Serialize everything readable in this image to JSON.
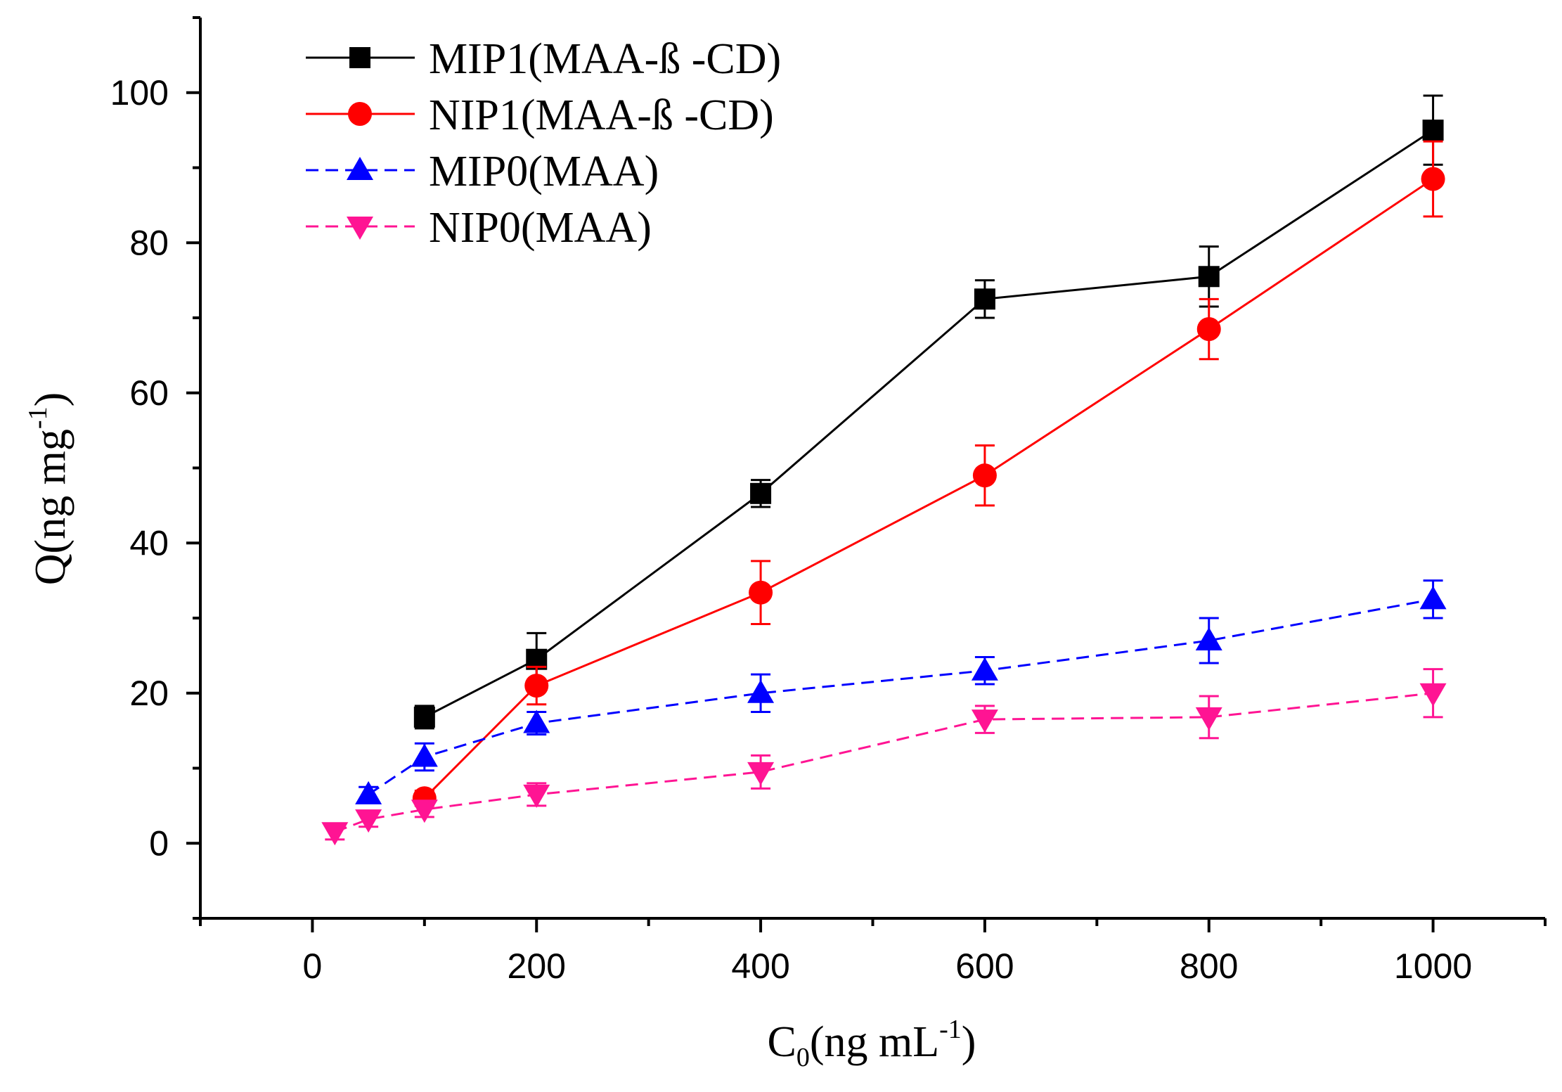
{
  "chart_data": {
    "type": "line",
    "title": "",
    "xlabel": {
      "main": "C",
      "sub": "0",
      "unit": "(ng mL",
      "sup": "-1",
      "close": ")"
    },
    "ylabel": {
      "main": "Q(ng mg",
      "sup": "-1",
      "close": ")"
    },
    "xlim": [
      -100,
      1100
    ],
    "ylim": [
      -10,
      110
    ],
    "x_major_ticks": [
      0,
      200,
      400,
      600,
      800,
      1000
    ],
    "x_tick_labels": [
      "0",
      "200",
      "400",
      "600",
      "800",
      "1000"
    ],
    "x_minor_ticks": [
      -100,
      100,
      300,
      500,
      700,
      900,
      1100
    ],
    "y_major_ticks": [
      0,
      20,
      40,
      60,
      80,
      100
    ],
    "y_tick_labels": [
      "0",
      "20",
      "40",
      "60",
      "80",
      "100"
    ],
    "y_minor_ticks": [
      -10,
      10,
      30,
      50,
      70,
      90,
      110
    ],
    "grid": false,
    "legend_position": "top-left",
    "series": [
      {
        "name": "MIP1(MAA-ß -CD)",
        "color": "#000000",
        "marker": "square",
        "line": "solid",
        "x": [
          100,
          200,
          400,
          600,
          800,
          1000
        ],
        "y": [
          16.8,
          24.5,
          46.6,
          72.5,
          75.5,
          95.0
        ],
        "err": [
          1.5,
          3.5,
          1.8,
          2.5,
          4.0,
          4.6
        ]
      },
      {
        "name": "NIP1(MAA-ß -CD)",
        "color": "#ff0000",
        "marker": "circle",
        "line": "solid",
        "x": [
          100,
          200,
          400,
          600,
          800,
          1000
        ],
        "y": [
          6.0,
          21.0,
          33.4,
          49.0,
          68.5,
          88.5
        ],
        "err": [
          1.0,
          2.5,
          4.2,
          4.0,
          4.0,
          5.0
        ]
      },
      {
        "name": "MIP0(MAA)",
        "color": "#0000ff",
        "marker": "triangle-up",
        "line": "dashed",
        "x": [
          50,
          100,
          200,
          400,
          600,
          800,
          1000
        ],
        "y": [
          6.5,
          11.5,
          16.0,
          20.0,
          23.0,
          27.0,
          32.5
        ],
        "err": [
          1.0,
          1.8,
          1.5,
          2.5,
          1.8,
          3.0,
          2.5
        ]
      },
      {
        "name": "NIP0(MAA)",
        "color": "#ff1493",
        "marker": "triangle-down",
        "line": "dashed",
        "x": [
          20,
          50,
          100,
          200,
          400,
          600,
          800,
          1000
        ],
        "y": [
          1.5,
          3.2,
          4.5,
          6.5,
          9.5,
          16.5,
          16.8,
          20.0
        ],
        "err": [
          1.0,
          1.0,
          1.0,
          1.5,
          2.2,
          1.8,
          2.8,
          3.2
        ]
      }
    ]
  }
}
